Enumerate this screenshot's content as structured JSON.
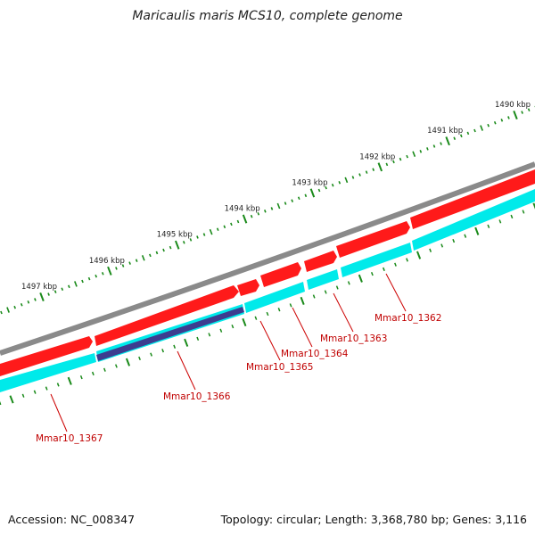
{
  "title": "Maricaulis maris MCS10, complete genome",
  "footer": {
    "accession": "Accession: NC_008347",
    "summary": "Topology: circular; Length: 3,368,780 bp; Genes: 3,116"
  },
  "colors": {
    "backbone": "#808080",
    "forward_cds": "#ff0000",
    "gene": "#00e5ee",
    "rna": "#3c3c8c",
    "tick": "#1a8a1a",
    "label": "#c00000"
  },
  "ticks": [
    {
      "kbp": 1490,
      "label": "1490 kbp"
    },
    {
      "kbp": 1491,
      "label": "1491 kbp"
    },
    {
      "kbp": 1492,
      "label": "1492 kbp"
    },
    {
      "kbp": 1493,
      "label": "1493 kbp"
    },
    {
      "kbp": 1494,
      "label": "1494 kbp"
    },
    {
      "kbp": 1495,
      "label": "1495 kbp"
    },
    {
      "kbp": 1496,
      "label": "1496 kbp"
    },
    {
      "kbp": 1497,
      "label": "1497 kbp"
    }
  ],
  "genes": [
    {
      "label": "Mmar10_1362"
    },
    {
      "label": "Mmar10_1363"
    },
    {
      "label": "Mmar10_1364"
    },
    {
      "label": "Mmar10_1365"
    },
    {
      "label": "Mmar10_1366"
    },
    {
      "label": "Mmar10_1367"
    }
  ]
}
